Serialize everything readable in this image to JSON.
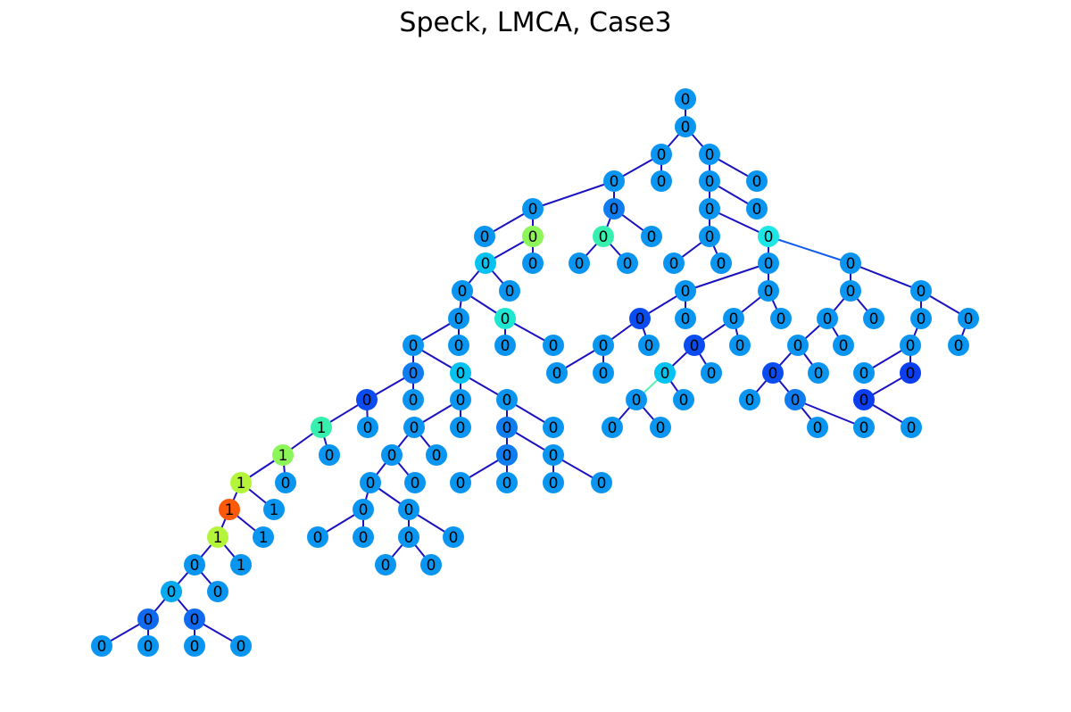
{
  "title": "Speck, LMCA, Case3",
  "colors": {
    "default_node": "#0a96f0",
    "default_edge": "#1a12c0"
  },
  "tree": {
    "nodes": [
      {
        "id": "root",
        "label": "0"
      },
      {
        "id": "n1",
        "label": "0"
      },
      {
        "id": "n2a",
        "label": "0"
      },
      {
        "id": "n2b",
        "label": "0"
      },
      {
        "id": "n3a",
        "label": "0"
      },
      {
        "id": "n3b",
        "label": "0"
      },
      {
        "id": "n3c",
        "label": "0"
      },
      {
        "id": "n3d",
        "label": "0"
      },
      {
        "id": "n4a",
        "label": "0"
      },
      {
        "id": "n4b",
        "label": "0",
        "color": "#0f7cf0"
      },
      {
        "id": "n4c",
        "label": "0"
      },
      {
        "id": "n4d",
        "label": "0"
      },
      {
        "id": "n5a",
        "label": "0"
      },
      {
        "id": "n5b",
        "label": "0",
        "color": "#8cf55a"
      },
      {
        "id": "n5c",
        "label": "0",
        "color": "#37f0b0"
      },
      {
        "id": "n5d",
        "label": "0"
      },
      {
        "id": "n5e",
        "label": "0"
      },
      {
        "id": "n5f",
        "label": "0",
        "color": "#1ee6e6"
      },
      {
        "id": "n6a",
        "label": "0",
        "color": "#06c2f0"
      },
      {
        "id": "n6b",
        "label": "0"
      },
      {
        "id": "n6c",
        "label": "0"
      },
      {
        "id": "n6d",
        "label": "0"
      },
      {
        "id": "n6e",
        "label": "0"
      },
      {
        "id": "n6f",
        "label": "0"
      },
      {
        "id": "n6g",
        "label": "0"
      },
      {
        "id": "n6h",
        "label": "0"
      },
      {
        "id": "n7a",
        "label": "0"
      },
      {
        "id": "n7b",
        "label": "0"
      },
      {
        "id": "n7c",
        "label": "0"
      },
      {
        "id": "n7d",
        "label": "0"
      },
      {
        "id": "n7e",
        "label": "0"
      },
      {
        "id": "n7f",
        "label": "0"
      },
      {
        "id": "n8a",
        "label": "0"
      },
      {
        "id": "n8b",
        "label": "0",
        "color": "#1ee6d0"
      },
      {
        "id": "n8c",
        "label": "0",
        "color": "#0a4cf0"
      },
      {
        "id": "n8d",
        "label": "0"
      },
      {
        "id": "n8e",
        "label": "0"
      },
      {
        "id": "n8f",
        "label": "0"
      },
      {
        "id": "n8g",
        "label": "0"
      },
      {
        "id": "n8h",
        "label": "0"
      },
      {
        "id": "n8i",
        "label": "0"
      },
      {
        "id": "n8j",
        "label": "0"
      },
      {
        "id": "n8k",
        "label": "0"
      },
      {
        "id": "n9a",
        "label": "0"
      },
      {
        "id": "n9b",
        "label": "0"
      },
      {
        "id": "n9c",
        "label": "0"
      },
      {
        "id": "n9d",
        "label": "0"
      },
      {
        "id": "n9e",
        "label": "0"
      },
      {
        "id": "n9f",
        "label": "0"
      },
      {
        "id": "n9g",
        "label": "0",
        "color": "#0a4cf0"
      },
      {
        "id": "n9h",
        "label": "0"
      },
      {
        "id": "n9i",
        "label": "0"
      },
      {
        "id": "n9j",
        "label": "0"
      },
      {
        "id": "n9k",
        "label": "0"
      },
      {
        "id": "n9l",
        "label": "0"
      },
      {
        "id": "n10a",
        "label": "0",
        "color": "#0f7cf0"
      },
      {
        "id": "n10b",
        "label": "0",
        "color": "#06c2f0"
      },
      {
        "id": "n10c",
        "label": "0"
      },
      {
        "id": "n10d",
        "label": "0"
      },
      {
        "id": "n10e",
        "label": "0",
        "color": "#06c2f0"
      },
      {
        "id": "n10f",
        "label": "0"
      },
      {
        "id": "n10g",
        "label": "0",
        "color": "#0a4cf0"
      },
      {
        "id": "n10h",
        "label": "0"
      },
      {
        "id": "n10i",
        "label": "0"
      },
      {
        "id": "n10j",
        "label": "0",
        "color": "#0a3ef0"
      },
      {
        "id": "n11a",
        "label": "0",
        "color": "#0a4cf0"
      },
      {
        "id": "n11b",
        "label": "0"
      },
      {
        "id": "n11c",
        "label": "0"
      },
      {
        "id": "n11d",
        "label": "0"
      },
      {
        "id": "n11e",
        "label": "0"
      },
      {
        "id": "n11f",
        "label": "0"
      },
      {
        "id": "n11g",
        "label": "0"
      },
      {
        "id": "n11h",
        "label": "0",
        "color": "#0f7cf0"
      },
      {
        "id": "n11i",
        "label": "0",
        "color": "#0a3ef0"
      },
      {
        "id": "n12a",
        "label": "1",
        "color": "#37f0b0"
      },
      {
        "id": "n12b",
        "label": "0"
      },
      {
        "id": "n12c",
        "label": "0"
      },
      {
        "id": "n12d",
        "label": "0"
      },
      {
        "id": "n12e",
        "label": "0",
        "color": "#0f7cf0"
      },
      {
        "id": "n12f",
        "label": "0"
      },
      {
        "id": "n12g",
        "label": "0"
      },
      {
        "id": "n12h",
        "label": "0"
      },
      {
        "id": "n12i",
        "label": "0"
      },
      {
        "id": "n12j",
        "label": "0"
      },
      {
        "id": "n12k",
        "label": "0"
      },
      {
        "id": "n13a",
        "label": "1",
        "color": "#8cf55a"
      },
      {
        "id": "n13b",
        "label": "0"
      },
      {
        "id": "n13c",
        "label": "0"
      },
      {
        "id": "n13d",
        "label": "0"
      },
      {
        "id": "n13e",
        "label": "0",
        "color": "#0f7cf0"
      },
      {
        "id": "n13f",
        "label": "0"
      },
      {
        "id": "n14a",
        "label": "1",
        "color": "#b4f53c"
      },
      {
        "id": "n14b",
        "label": "0"
      },
      {
        "id": "n14c",
        "label": "0"
      },
      {
        "id": "n14d",
        "label": "0"
      },
      {
        "id": "n14e",
        "label": "0"
      },
      {
        "id": "n14f",
        "label": "0"
      },
      {
        "id": "n14g",
        "label": "0"
      },
      {
        "id": "n14h",
        "label": "0"
      },
      {
        "id": "n15a",
        "label": "1",
        "color": "#fa5a0a"
      },
      {
        "id": "n15b",
        "label": "1"
      },
      {
        "id": "n15c",
        "label": "0"
      },
      {
        "id": "n15d",
        "label": "0"
      },
      {
        "id": "n16a",
        "label": "1",
        "color": "#b4f53c"
      },
      {
        "id": "n16b",
        "label": "1"
      },
      {
        "id": "n16c",
        "label": "0"
      },
      {
        "id": "n16d",
        "label": "0"
      },
      {
        "id": "n16e",
        "label": "0"
      },
      {
        "id": "n16f",
        "label": "0"
      },
      {
        "id": "n17a",
        "label": "0"
      },
      {
        "id": "n17b",
        "label": "1"
      },
      {
        "id": "n17c",
        "label": "0"
      },
      {
        "id": "n17d",
        "label": "0"
      },
      {
        "id": "n18a",
        "label": "0",
        "color": "#06aaf0"
      },
      {
        "id": "n18b",
        "label": "0"
      },
      {
        "id": "n19a",
        "label": "0",
        "color": "#0f6af0"
      },
      {
        "id": "n19b",
        "label": "0",
        "color": "#0f6af0"
      },
      {
        "id": "n20a",
        "label": "0"
      },
      {
        "id": "n20b",
        "label": "0"
      },
      {
        "id": "n20c",
        "label": "0"
      },
      {
        "id": "n20d",
        "label": "0"
      }
    ],
    "edges": [
      {
        "from": "root",
        "to": "n1"
      },
      {
        "from": "n1",
        "to": "n2a"
      },
      {
        "from": "n1",
        "to": "n2b"
      },
      {
        "from": "n2a",
        "to": "n3a"
      },
      {
        "from": "n2a",
        "to": "n3b"
      },
      {
        "from": "n2b",
        "to": "n3c"
      },
      {
        "from": "n2b",
        "to": "n3d"
      },
      {
        "from": "n3a",
        "to": "n4a"
      },
      {
        "from": "n3a",
        "to": "n4b"
      },
      {
        "from": "n3c",
        "to": "n4c"
      },
      {
        "from": "n3c",
        "to": "n4d"
      },
      {
        "from": "n4a",
        "to": "n5a"
      },
      {
        "from": "n4a",
        "to": "n5b"
      },
      {
        "from": "n4b",
        "to": "n5c"
      },
      {
        "from": "n4b",
        "to": "n5d"
      },
      {
        "from": "n4c",
        "to": "n5e"
      },
      {
        "from": "n4c",
        "to": "n5f"
      },
      {
        "from": "n5b",
        "to": "n6a"
      },
      {
        "from": "n5b",
        "to": "n6b"
      },
      {
        "from": "n5c",
        "to": "n6c"
      },
      {
        "from": "n5c",
        "to": "n6d"
      },
      {
        "from": "n5e",
        "to": "n6e"
      },
      {
        "from": "n5e",
        "to": "n6f"
      },
      {
        "from": "n5f",
        "to": "n6g"
      },
      {
        "from": "n5f",
        "to": "n6h",
        "color": "#0f5af0"
      },
      {
        "from": "n6a",
        "to": "n7a"
      },
      {
        "from": "n6a",
        "to": "n7b"
      },
      {
        "from": "n6g",
        "to": "n7c"
      },
      {
        "from": "n6g",
        "to": "n7d"
      },
      {
        "from": "n6h",
        "to": "n7e"
      },
      {
        "from": "n6h",
        "to": "n7f"
      },
      {
        "from": "n7a",
        "to": "n8a"
      },
      {
        "from": "n7a",
        "to": "n8b"
      },
      {
        "from": "n7c",
        "to": "n8c"
      },
      {
        "from": "n7c",
        "to": "n8d"
      },
      {
        "from": "n7d",
        "to": "n8e"
      },
      {
        "from": "n7d",
        "to": "n8f"
      },
      {
        "from": "n7e",
        "to": "n8g"
      },
      {
        "from": "n7e",
        "to": "n8h"
      },
      {
        "from": "n7f",
        "to": "n8i"
      },
      {
        "from": "n7f",
        "to": "n8j"
      },
      {
        "from": "n8a",
        "to": "n9a"
      },
      {
        "from": "n8a",
        "to": "n9b"
      },
      {
        "from": "n8b",
        "to": "n9c"
      },
      {
        "from": "n8b",
        "to": "n9d"
      },
      {
        "from": "n8c",
        "to": "n9e"
      },
      {
        "from": "n8c",
        "to": "n9f"
      },
      {
        "from": "n8e",
        "to": "n9g"
      },
      {
        "from": "n8e",
        "to": "n9h"
      },
      {
        "from": "n8g",
        "to": "n9i"
      },
      {
        "from": "n8g",
        "to": "n9j"
      },
      {
        "from": "n8i",
        "to": "n9k"
      },
      {
        "from": "n8j",
        "to": "n9l"
      },
      {
        "from": "n9a",
        "to": "n10a"
      },
      {
        "from": "n9a",
        "to": "n10b"
      },
      {
        "from": "n9e",
        "to": "n10c"
      },
      {
        "from": "n9e",
        "to": "n10d"
      },
      {
        "from": "n9g",
        "to": "n10e"
      },
      {
        "from": "n9g",
        "to": "n10f"
      },
      {
        "from": "n9i",
        "to": "n10g"
      },
      {
        "from": "n9i",
        "to": "n10h"
      },
      {
        "from": "n9k",
        "to": "n10i"
      },
      {
        "from": "n9k",
        "to": "n10j"
      },
      {
        "from": "n10a",
        "to": "n11a"
      },
      {
        "from": "n10a",
        "to": "n11b"
      },
      {
        "from": "n10b",
        "to": "n11c"
      },
      {
        "from": "n10b",
        "to": "n11d"
      },
      {
        "from": "n10e",
        "to": "n11e",
        "color": "#5af0b4"
      },
      {
        "from": "n10e",
        "to": "n11f"
      },
      {
        "from": "n10g",
        "to": "n11g"
      },
      {
        "from": "n10g",
        "to": "n11h"
      },
      {
        "from": "n10j",
        "to": "n11i"
      },
      {
        "from": "n11a",
        "to": "n12a"
      },
      {
        "from": "n11a",
        "to": "n12b"
      },
      {
        "from": "n11c",
        "to": "n12c"
      },
      {
        "from": "n11c",
        "to": "n12d"
      },
      {
        "from": "n11d",
        "to": "n12e"
      },
      {
        "from": "n11d",
        "to": "n12f"
      },
      {
        "from": "n11e",
        "to": "n12g"
      },
      {
        "from": "n11e",
        "to": "n12h"
      },
      {
        "from": "n11h",
        "to": "n12i"
      },
      {
        "from": "n11h",
        "to": "n12j"
      },
      {
        "from": "n11i",
        "to": "n12k"
      },
      {
        "from": "n12a",
        "to": "n13a"
      },
      {
        "from": "n12a",
        "to": "n13b"
      },
      {
        "from": "n12c",
        "to": "n13c"
      },
      {
        "from": "n12c",
        "to": "n13d"
      },
      {
        "from": "n12e",
        "to": "n13e"
      },
      {
        "from": "n12e",
        "to": "n13f"
      },
      {
        "from": "n13a",
        "to": "n14a"
      },
      {
        "from": "n13a",
        "to": "n14b"
      },
      {
        "from": "n13c",
        "to": "n14c"
      },
      {
        "from": "n13c",
        "to": "n14d"
      },
      {
        "from": "n13e",
        "to": "n14e"
      },
      {
        "from": "n13e",
        "to": "n14f"
      },
      {
        "from": "n13f",
        "to": "n14g"
      },
      {
        "from": "n13f",
        "to": "n14h"
      },
      {
        "from": "n14a",
        "to": "n15a"
      },
      {
        "from": "n14a",
        "to": "n15b"
      },
      {
        "from": "n14c",
        "to": "n15c"
      },
      {
        "from": "n14c",
        "to": "n15d"
      },
      {
        "from": "n15a",
        "to": "n16a"
      },
      {
        "from": "n15a",
        "to": "n16b"
      },
      {
        "from": "n15c",
        "to": "n16c"
      },
      {
        "from": "n15c",
        "to": "n16d"
      },
      {
        "from": "n15d",
        "to": "n16e"
      },
      {
        "from": "n15d",
        "to": "n16f"
      },
      {
        "from": "n16a",
        "to": "n17a"
      },
      {
        "from": "n16a",
        "to": "n17b"
      },
      {
        "from": "n16e",
        "to": "n17c"
      },
      {
        "from": "n16e",
        "to": "n17d"
      },
      {
        "from": "n17a",
        "to": "n18a"
      },
      {
        "from": "n17a",
        "to": "n18b"
      },
      {
        "from": "n18a",
        "to": "n19a"
      },
      {
        "from": "n18a",
        "to": "n19b"
      },
      {
        "from": "n19a",
        "to": "n20a"
      },
      {
        "from": "n19a",
        "to": "n20b"
      },
      {
        "from": "n19b",
        "to": "n20c"
      },
      {
        "from": "n19b",
        "to": "n20d"
      }
    ]
  }
}
